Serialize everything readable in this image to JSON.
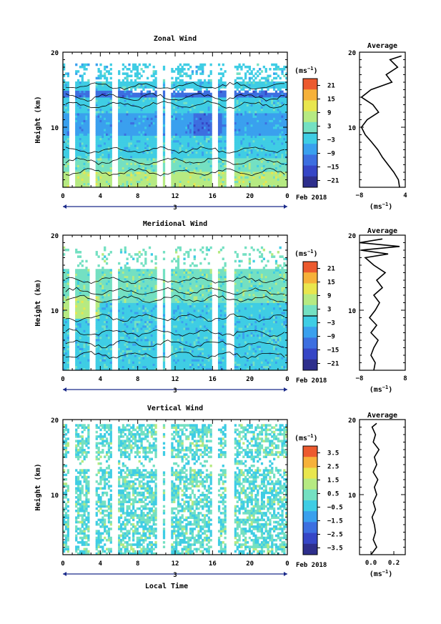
{
  "chart_data": [
    {
      "type": "heatmap",
      "title": "Zonal Wind",
      "ylabel": "Height (km)",
      "ylim": [
        2,
        20
      ],
      "y_ticks": [
        "10",
        "20"
      ],
      "xlim": [
        0,
        24
      ],
      "x_ticks": [
        "0",
        "4",
        "8",
        "12",
        "16",
        "20",
        "0"
      ],
      "date_label": "3",
      "month_label": "Feb 2018",
      "colorbar": {
        "unit_label": "(ms",
        "unit_sup": "−1",
        "levels": [
          -21,
          -15,
          -9,
          -3,
          3,
          9,
          15,
          21
        ],
        "tick_labels": [
          "21",
          "15",
          "9",
          "3",
          "−3",
          "−9",
          "−15",
          "−21"
        ],
        "zero_line": true
      },
      "profile": {
        "title": "Average",
        "xlim": [
          -8,
          4
        ],
        "x_ticks": [
          "−8",
          "4"
        ],
        "y_ticks": [
          "10",
          "20"
        ],
        "xlabel": "(ms",
        "xlabel_sup": "−1",
        "points": [
          [
            2.5,
            2
          ],
          [
            2.2,
            3
          ],
          [
            1.0,
            4
          ],
          [
            -0.5,
            5
          ],
          [
            -2.0,
            6
          ],
          [
            -3.2,
            7
          ],
          [
            -4.8,
            8
          ],
          [
            -6.5,
            9
          ],
          [
            -7.5,
            10
          ],
          [
            -6.0,
            11
          ],
          [
            -3.0,
            12
          ],
          [
            -4.5,
            13
          ],
          [
            -7.5,
            14
          ],
          [
            -5.0,
            15
          ],
          [
            0.5,
            16
          ],
          [
            -1.0,
            17
          ],
          [
            2.0,
            18
          ],
          [
            0.0,
            19
          ],
          [
            3.0,
            19.5
          ]
        ]
      }
    },
    {
      "type": "heatmap",
      "title": "Meridional Wind",
      "ylabel": "Height (km)",
      "ylim": [
        2,
        20
      ],
      "y_ticks": [
        "10",
        "20"
      ],
      "xlim": [
        0,
        24
      ],
      "x_ticks": [
        "0",
        "4",
        "8",
        "12",
        "16",
        "20",
        "0"
      ],
      "date_label": "3",
      "month_label": "Feb 2018",
      "colorbar": {
        "unit_label": "(ms",
        "unit_sup": "−1",
        "levels": [
          -21,
          -15,
          -9,
          -3,
          3,
          9,
          15,
          21
        ],
        "tick_labels": [
          "21",
          "15",
          "9",
          "3",
          "−3",
          "−9",
          "−15",
          "−21"
        ],
        "zero_line": true
      },
      "profile": {
        "title": "Average",
        "xlim": [
          -8,
          8
        ],
        "x_ticks": [
          "−8",
          "8"
        ],
        "y_ticks": [
          "10",
          "20"
        ],
        "xlabel": "(ms",
        "xlabel_sup": "−1",
        "points": [
          [
            -3.0,
            2
          ],
          [
            -2.5,
            3
          ],
          [
            -4.0,
            4
          ],
          [
            -3.0,
            5
          ],
          [
            -1.5,
            6
          ],
          [
            -4.0,
            7
          ],
          [
            -2.0,
            8
          ],
          [
            -4.5,
            9
          ],
          [
            -2.5,
            10
          ],
          [
            -1.0,
            11
          ],
          [
            -3.0,
            12
          ],
          [
            0.0,
            13
          ],
          [
            -2.0,
            14
          ],
          [
            1.0,
            15
          ],
          [
            -3.0,
            16
          ],
          [
            -6.0,
            17
          ],
          [
            2.0,
            17.5
          ],
          [
            -7.5,
            18
          ],
          [
            6.0,
            18.5
          ],
          [
            -8.0,
            19
          ],
          [
            0.0,
            19.5
          ]
        ]
      }
    },
    {
      "type": "heatmap",
      "title": "Vertical Wind",
      "ylabel": "Height (km)",
      "xlabel": "Local Time",
      "ylim": [
        2,
        20
      ],
      "y_ticks": [
        "10",
        "20"
      ],
      "xlim": [
        0,
        24
      ],
      "x_ticks": [
        "0",
        "4",
        "8",
        "12",
        "16",
        "20",
        "0"
      ],
      "date_label": "3",
      "month_label": "Feb 2018",
      "colorbar": {
        "unit_label": "(ms",
        "unit_sup": "−1",
        "levels": [
          -3.5,
          -2.5,
          -1.5,
          -0.5,
          0.5,
          1.5,
          2.5,
          3.5
        ],
        "tick_labels": [
          "3.5",
          "2.5",
          "1.5",
          "0.5",
          "−0.5",
          "−1.5",
          "−2.5",
          "−3.5"
        ],
        "zero_line": false
      },
      "profile": {
        "title": "Average",
        "xlim": [
          -0.1,
          0.3
        ],
        "x_ticks": [
          "0.0",
          "0.2"
        ],
        "y_ticks": [
          "10",
          "20"
        ],
        "xlabel": "(ms",
        "xlabel_sup": "−1",
        "points": [
          [
            0.0,
            2
          ],
          [
            0.05,
            3
          ],
          [
            0.02,
            4
          ],
          [
            0.04,
            5
          ],
          [
            0.03,
            6
          ],
          [
            0.01,
            7
          ],
          [
            0.04,
            8
          ],
          [
            0.02,
            9
          ],
          [
            0.05,
            10
          ],
          [
            0.03,
            11
          ],
          [
            0.06,
            12
          ],
          [
            0.02,
            13
          ],
          [
            0.05,
            14
          ],
          [
            0.03,
            15
          ],
          [
            0.07,
            16
          ],
          [
            0.02,
            17
          ],
          [
            0.04,
            18
          ],
          [
            0.01,
            19
          ],
          [
            0.05,
            19.5
          ]
        ]
      }
    }
  ]
}
